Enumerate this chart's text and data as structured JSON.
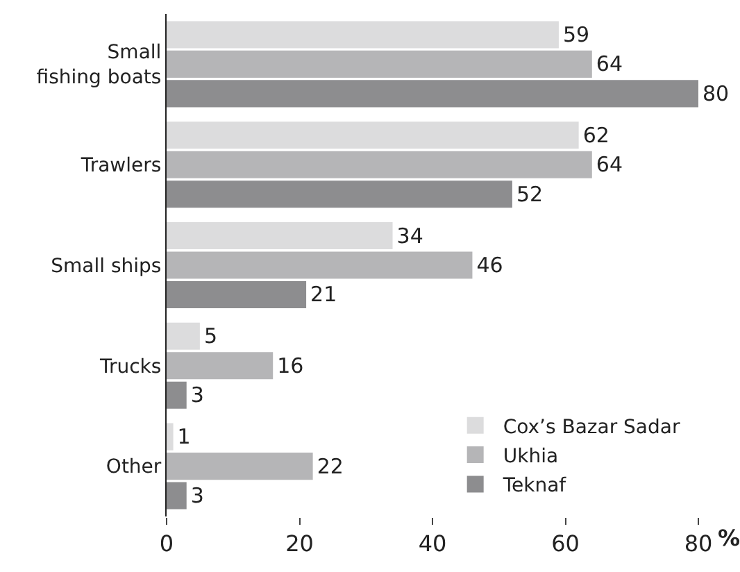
{
  "chart_data": {
    "type": "bar",
    "orientation": "horizontal",
    "categories": [
      "Small\nfishing boats",
      "Trawlers",
      "Small ships",
      "Trucks",
      "Other"
    ],
    "series": [
      {
        "name": "Cox’s Bazar Sadar",
        "color": "#dcdcdd",
        "values": [
          59,
          62,
          34,
          5,
          1
        ]
      },
      {
        "name": "Ukhia",
        "color": "#b5b5b7",
        "values": [
          64,
          64,
          46,
          16,
          22
        ]
      },
      {
        "name": "Teknaf",
        "color": "#8d8d8f",
        "values": [
          80,
          52,
          21,
          3,
          3
        ]
      }
    ],
    "xlabel": "%",
    "xlim": [
      0,
      80
    ],
    "xticks": [
      0,
      20,
      40,
      60,
      80
    ],
    "data_labels": true,
    "legend": "bottom right"
  }
}
